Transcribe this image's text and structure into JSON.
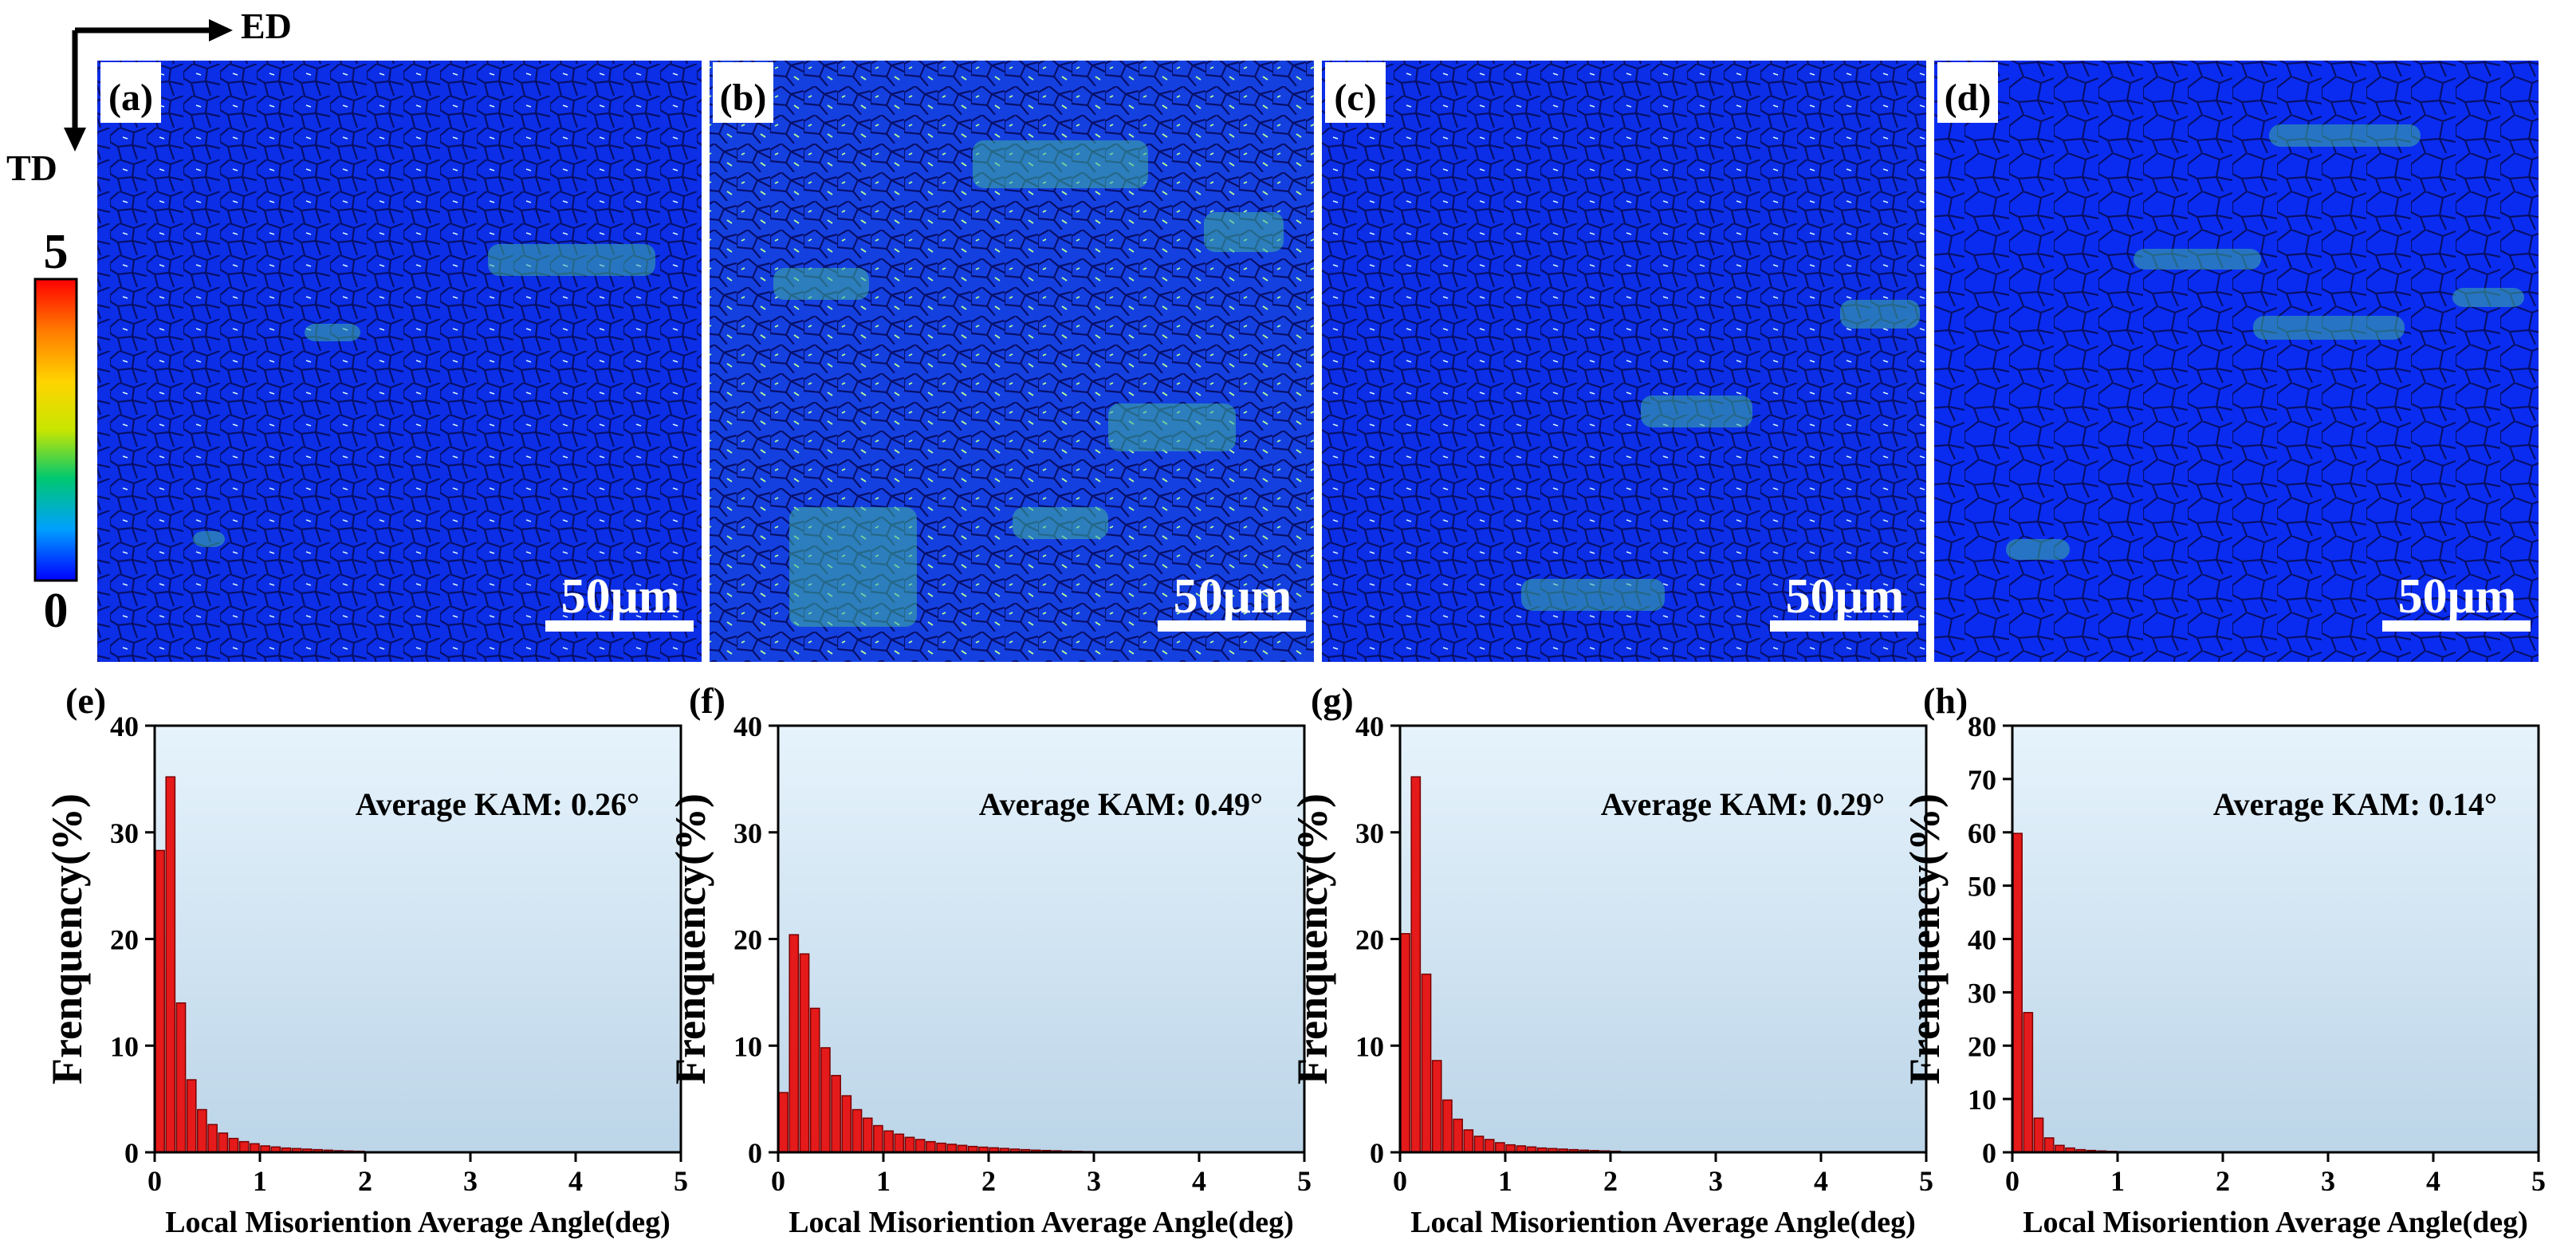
{
  "axes_indicator": {
    "horizontal": "ED",
    "vertical": "TD"
  },
  "colorbar": {
    "max_label": "5",
    "min_label": "0",
    "colors": [
      "#0000ff",
      "#00a0ff",
      "#00c870",
      "#c8e600",
      "#ffd400",
      "#ff7a00",
      "#ff0000"
    ]
  },
  "maps": [
    {
      "label": "(a)",
      "scale": "50μm"
    },
    {
      "label": "(b)",
      "scale": "50μm"
    },
    {
      "label": "(c)",
      "scale": "50μm"
    },
    {
      "label": "(d)",
      "scale": "50μm"
    }
  ],
  "chart_data": [
    {
      "type": "bar",
      "label": "(e)",
      "annotation": "Average KAM: 0.26°",
      "xlabel": "Local Misoriention Average Angle(deg)",
      "ylabel": "Frenquency(%)",
      "xlim": [
        0,
        5
      ],
      "ylim": [
        0,
        40
      ],
      "xticks": [
        "0",
        "1",
        "2",
        "3",
        "4",
        "5"
      ],
      "yticks": [
        "0",
        "10",
        "20",
        "30",
        "40"
      ],
      "bin_width": 0.1,
      "x_start": 0,
      "values": [
        28.3,
        35.2,
        14.0,
        6.8,
        4.0,
        2.6,
        1.8,
        1.3,
        1.0,
        0.8,
        0.6,
        0.5,
        0.4,
        0.35,
        0.3,
        0.25,
        0.2,
        0.15,
        0.12,
        0.1
      ]
    },
    {
      "type": "bar",
      "label": "(f)",
      "annotation": "Average KAM: 0.49°",
      "xlabel": "Local Misoriention Average Angle(deg)",
      "ylabel": "Frenquency(%)",
      "xlim": [
        0,
        5
      ],
      "ylim": [
        0,
        40
      ],
      "xticks": [
        "0",
        "1",
        "2",
        "3",
        "4",
        "5"
      ],
      "yticks": [
        "0",
        "10",
        "20",
        "30",
        "40"
      ],
      "bin_width": 0.1,
      "x_start": 0,
      "values": [
        5.6,
        20.4,
        18.6,
        13.5,
        9.8,
        7.2,
        5.3,
        4.0,
        3.2,
        2.5,
        2.0,
        1.7,
        1.4,
        1.2,
        1.0,
        0.85,
        0.75,
        0.65,
        0.55,
        0.48,
        0.42,
        0.36,
        0.3,
        0.25,
        0.2,
        0.17,
        0.14,
        0.11,
        0.09,
        0.07
      ]
    },
    {
      "type": "bar",
      "label": "(g)",
      "annotation": "Average KAM: 0.29°",
      "xlabel": "Local Misoriention Average Angle(deg)",
      "ylabel": "Frenquency(%)",
      "xlim": [
        0,
        5
      ],
      "ylim": [
        0,
        40
      ],
      "xticks": [
        "0",
        "1",
        "2",
        "3",
        "4",
        "5"
      ],
      "yticks": [
        "0",
        "10",
        "20",
        "30",
        "40"
      ],
      "bin_width": 0.1,
      "x_start": 0,
      "values": [
        20.5,
        35.2,
        16.7,
        8.6,
        4.9,
        3.1,
        2.1,
        1.5,
        1.2,
        0.9,
        0.7,
        0.6,
        0.5,
        0.4,
        0.35,
        0.3,
        0.25,
        0.2,
        0.16,
        0.13,
        0.1
      ]
    },
    {
      "type": "bar",
      "label": "(h)",
      "annotation": "Average KAM: 0.14°",
      "xlabel": "Local Misoriention Average Angle(deg)",
      "ylabel": "Frenquency(%)",
      "xlim": [
        0,
        5
      ],
      "ylim": [
        0,
        80
      ],
      "xticks": [
        "0",
        "1",
        "2",
        "3",
        "4",
        "5"
      ],
      "yticks": [
        "0",
        "10",
        "20",
        "30",
        "40",
        "50",
        "60",
        "70",
        "80"
      ],
      "bin_width": 0.1,
      "x_start": 0,
      "values": [
        59.8,
        26.2,
        6.4,
        2.7,
        1.3,
        0.8,
        0.5,
        0.35,
        0.25,
        0.18,
        0.12,
        0.08
      ]
    }
  ]
}
